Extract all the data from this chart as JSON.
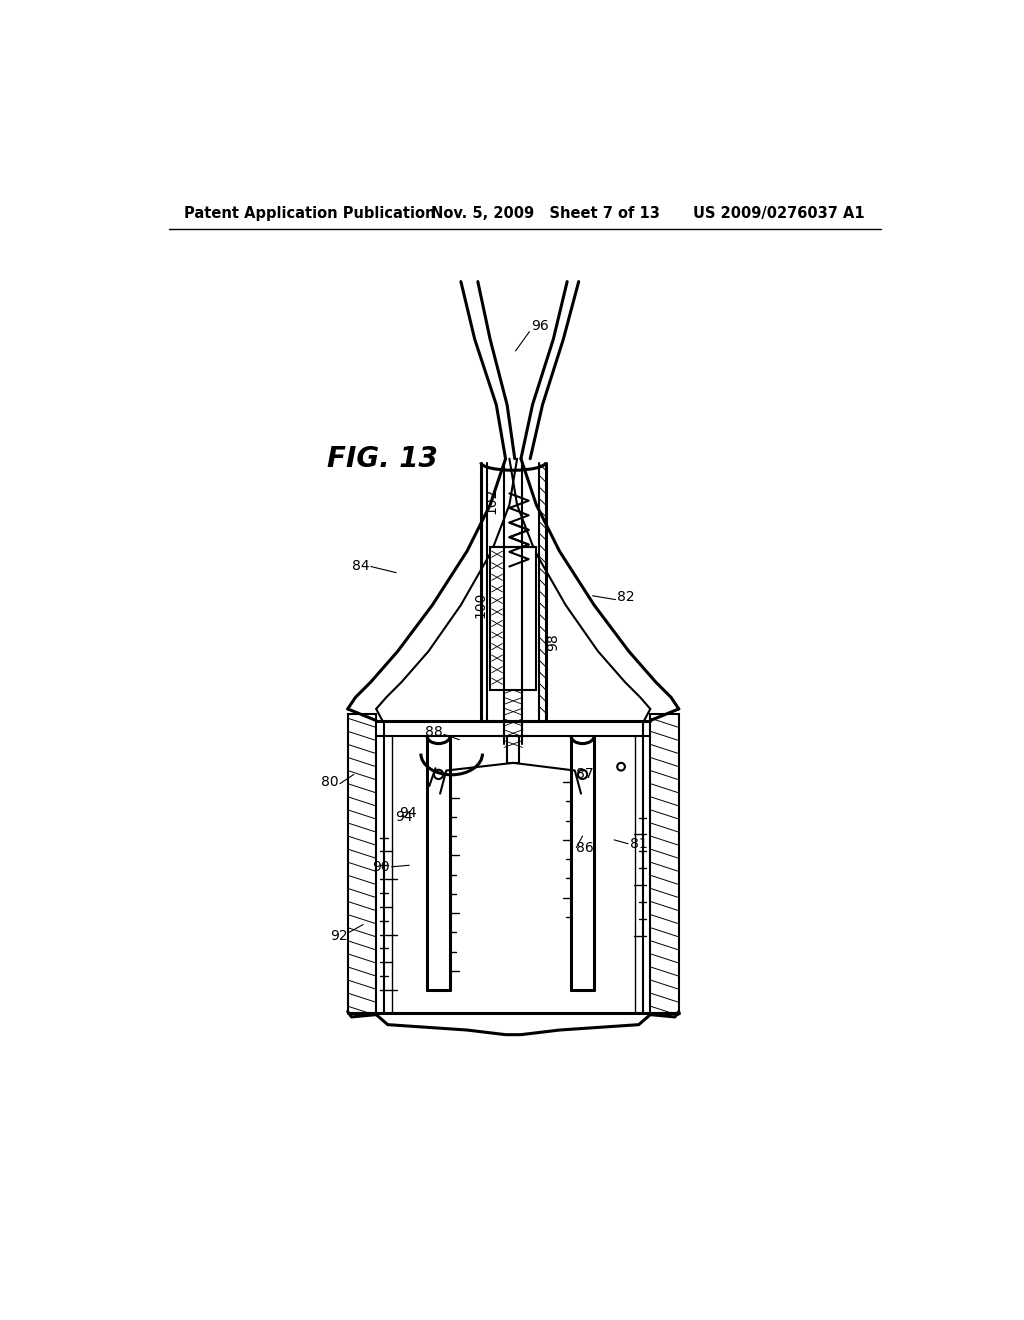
{
  "bg_color": "#ffffff",
  "header_left": "Patent Application Publication",
  "header_mid": "Nov. 5, 2009   Sheet 7 of 13",
  "header_right": "US 2009/0276037 A1",
  "fig_label": "FIG. 13"
}
